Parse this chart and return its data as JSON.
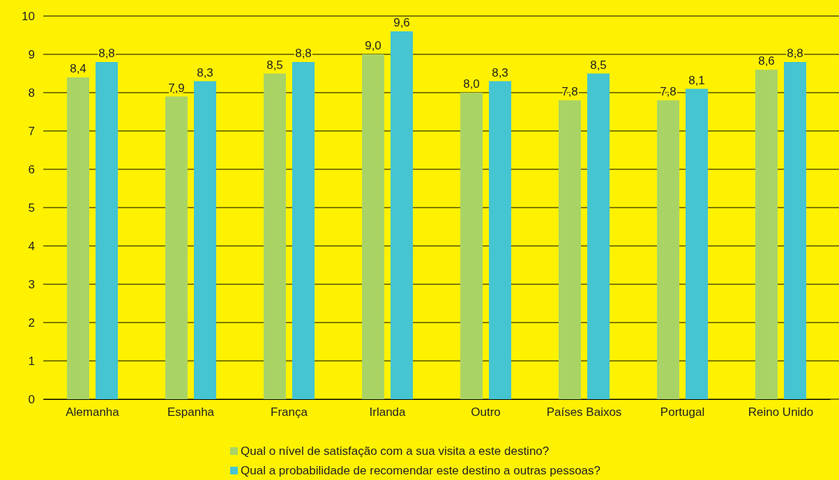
{
  "chart_data": {
    "type": "bar",
    "categories": [
      "Alemanha",
      "Espanha",
      "França",
      "Irlanda",
      "Outro",
      "Países Baixos",
      "Portugal",
      "Reino Unido"
    ],
    "series": [
      {
        "name": "Qual o nível de satisfação com a sua visita a este destino?",
        "color": "#a9d465",
        "values": [
          8.4,
          7.9,
          8.5,
          9.0,
          8.0,
          7.8,
          7.8,
          8.6
        ],
        "value_labels": [
          "8,4",
          "7,9",
          "8,5",
          "9,0",
          "8,0",
          "7,8",
          "7,8",
          "8,6"
        ]
      },
      {
        "name": "Qual a probabilidade de recomendar este destino a outras pessoas?",
        "color": "#45c4d1",
        "values": [
          8.8,
          8.3,
          8.8,
          9.6,
          8.3,
          8.5,
          8.1,
          8.8
        ],
        "value_labels": [
          "8,8",
          "8,3",
          "8,8",
          "9,6",
          "8,3",
          "8,5",
          "8,1",
          "8,8"
        ]
      }
    ],
    "ylim": [
      0,
      10
    ],
    "yticks": [
      0,
      1,
      2,
      3,
      4,
      5,
      6,
      7,
      8,
      9,
      10
    ],
    "grid": "y",
    "legend": "bottom"
  }
}
